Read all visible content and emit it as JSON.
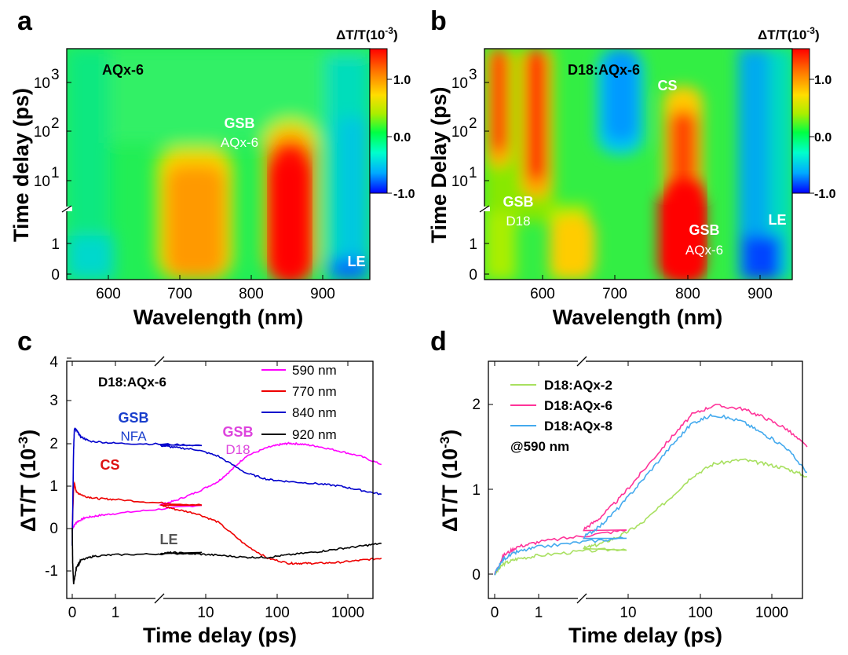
{
  "panel_letters": [
    "a",
    "b",
    "c",
    "d"
  ],
  "colors": {
    "cmap": [
      "#0000ff",
      "#00aaff",
      "#00ffbb",
      "#00ff44",
      "#aaee00",
      "#ffdd00",
      "#ff7700",
      "#ff0000"
    ],
    "c_590": "#ff00ff",
    "c_770": "#ee0000",
    "c_840": "#0000cc",
    "c_920": "#000000",
    "d_2": "#a8e060",
    "d_6": "#ff3399",
    "d_8": "#44aaee",
    "gsb_nfa": "#1a3fcc",
    "cs_red": "#dd1111",
    "gsb_d18": "#dd44dd",
    "le_gray": "#555555"
  },
  "chart_data": [
    {
      "id": "a",
      "type": "heatmap",
      "title": "AQx-6",
      "xlabel": "Wavelength (nm)",
      "ylabel": "Time delay (ps)",
      "xlim": [
        525,
        950
      ],
      "xticks": [
        "600",
        "700",
        "800",
        "900"
      ],
      "yticks_linear": [
        "0",
        "1"
      ],
      "yticks_log": [
        "10",
        "10",
        "10"
      ],
      "yticks_log_exp": [
        "1",
        "2",
        "3"
      ],
      "colorbar": {
        "title": "ΔT/T(10",
        "title_exp": "-3",
        "title_end": ")",
        "ticks": [
          "1.0",
          "0.0",
          "-1.0"
        ],
        "range": [
          -1.0,
          1.5
        ]
      },
      "annotations": [
        {
          "text": "GSB",
          "color": "#ffffff"
        },
        {
          "text": "AQx-6",
          "color": "#ffffff"
        },
        {
          "text": "LE",
          "color": "#ffffff"
        }
      ]
    },
    {
      "id": "b",
      "type": "heatmap",
      "title": "D18:AQx-6",
      "xlabel": "Wavelength (nm)",
      "ylabel": "Time Delay (ps)",
      "xlim": [
        525,
        950
      ],
      "xticks": [
        "600",
        "700",
        "800",
        "900"
      ],
      "yticks_linear": [
        "0",
        "1"
      ],
      "yticks_log": [
        "10",
        "10",
        "10"
      ],
      "yticks_log_exp": [
        "1",
        "2",
        "3"
      ],
      "colorbar": {
        "title": "ΔT/T(10",
        "title_exp": "-3",
        "title_end": ")",
        "ticks": [
          "1.0",
          "0.0",
          "-1.0"
        ],
        "range": [
          -1.0,
          1.5
        ]
      },
      "annotations": [
        {
          "text": "CS",
          "color": "#ffffff"
        },
        {
          "text": "GSB",
          "color": "#ffffff"
        },
        {
          "text": "D18",
          "color": "#ffffff"
        },
        {
          "text": "GSB",
          "color": "#ffffff"
        },
        {
          "text": "AQx-6",
          "color": "#ffffff"
        },
        {
          "text": "LE",
          "color": "#ffffff"
        }
      ]
    },
    {
      "id": "c",
      "type": "line",
      "title": "D18:AQx-6",
      "xlabel": "Time delay (ps)",
      "ylabel": "ΔT/T (10",
      "ylabel_exp": "-3",
      "ylabel_end": ")",
      "ylim": [
        -1.5,
        4
      ],
      "xticks": [
        "0",
        "1",
        "10",
        "100",
        "1000"
      ],
      "yticks": [
        "-1",
        "0",
        "1",
        "2",
        "3",
        "4"
      ],
      "series": [
        {
          "name": "590 nm",
          "t": [
            0,
            0.1,
            0.3,
            0.6,
            1,
            2,
            3,
            5,
            10,
            20,
            30,
            50,
            100,
            150,
            200,
            300,
            500,
            1000,
            2000,
            4000
          ],
          "values": [
            0.0,
            0.15,
            0.25,
            0.3,
            0.35,
            0.45,
            0.55,
            0.65,
            0.85,
            1.1,
            1.35,
            1.7,
            1.9,
            1.97,
            2.0,
            1.98,
            1.93,
            1.82,
            1.7,
            1.5
          ]
        },
        {
          "name": "770 nm",
          "t": [
            0,
            0.03,
            0.05,
            0.1,
            0.3,
            0.6,
            1,
            2,
            3,
            5,
            10,
            20,
            50,
            100,
            200,
            300,
            500,
            1000,
            2000,
            4000
          ],
          "values": [
            0.0,
            0.9,
            1.05,
            0.85,
            0.75,
            0.7,
            0.68,
            0.6,
            0.55,
            0.45,
            0.35,
            0.15,
            -0.4,
            -0.7,
            -0.82,
            -0.82,
            -0.82,
            -0.8,
            -0.75,
            -0.7
          ]
        },
        {
          "name": "840 nm",
          "t": [
            0,
            0.03,
            0.05,
            0.1,
            0.2,
            0.4,
            1,
            2,
            3,
            5,
            10,
            20,
            50,
            100,
            200,
            500,
            1000,
            2000,
            4000
          ],
          "values": [
            -0.4,
            1.8,
            2.35,
            2.3,
            2.15,
            2.05,
            2.0,
            1.98,
            1.95,
            1.9,
            1.85,
            1.7,
            1.3,
            1.15,
            1.1,
            1.05,
            1.0,
            0.9,
            0.8
          ]
        },
        {
          "name": "920 nm",
          "t": [
            0,
            0.01,
            0.03,
            0.05,
            0.1,
            0.2,
            0.5,
            1,
            2,
            3,
            5,
            10,
            20,
            50,
            100,
            200,
            500,
            1000,
            2000,
            4000
          ],
          "values": [
            0.0,
            -0.8,
            -1.3,
            -1.2,
            -0.9,
            -0.75,
            -0.65,
            -0.62,
            -0.6,
            -0.58,
            -0.57,
            -0.6,
            -0.63,
            -0.68,
            -0.68,
            -0.62,
            -0.55,
            -0.48,
            -0.42,
            -0.35
          ]
        }
      ],
      "annotations": [
        {
          "text": "GSB",
          "color": "#1a3fcc"
        },
        {
          "text": "NFA",
          "color": "#1a3fcc"
        },
        {
          "text": "CS",
          "color": "#dd1111"
        },
        {
          "text": "GSB",
          "color": "#dd44dd"
        },
        {
          "text": "D18",
          "color": "#dd44dd"
        },
        {
          "text": "LE",
          "color": "#555555"
        }
      ]
    },
    {
      "id": "d",
      "type": "line",
      "title": "@590 nm",
      "xlabel": "Time delay (ps)",
      "ylabel": "ΔT/T (10",
      "ylabel_exp": "-3",
      "ylabel_end": ")",
      "ylim": [
        -0.15,
        2.5
      ],
      "xticks": [
        "0",
        "1",
        "10",
        "100",
        "1000"
      ],
      "yticks": [
        "0",
        "1",
        "2"
      ],
      "series": [
        {
          "name": "D18:AQx-2",
          "t": [
            0,
            0.2,
            0.5,
            1,
            2,
            3,
            5,
            10,
            20,
            50,
            100,
            200,
            500,
            1000,
            2000,
            4000
          ],
          "values": [
            0.0,
            0.12,
            0.18,
            0.22,
            0.27,
            0.3,
            0.35,
            0.45,
            0.6,
            0.9,
            1.15,
            1.3,
            1.35,
            1.3,
            1.25,
            1.15
          ]
        },
        {
          "name": "D18:AQx-6",
          "t": [
            0,
            0.2,
            0.5,
            1,
            2,
            3,
            5,
            10,
            20,
            50,
            100,
            200,
            500,
            1000,
            2000,
            4000
          ],
          "values": [
            0.0,
            0.22,
            0.32,
            0.38,
            0.45,
            0.52,
            0.65,
            0.9,
            1.2,
            1.6,
            1.88,
            1.99,
            1.95,
            1.85,
            1.72,
            1.5
          ]
        },
        {
          "name": "D18:AQx-8",
          "t": [
            0,
            0.2,
            0.5,
            1,
            2,
            3,
            5,
            10,
            20,
            50,
            100,
            200,
            500,
            1000,
            2000,
            4000
          ],
          "values": [
            0.0,
            0.18,
            0.26,
            0.32,
            0.38,
            0.43,
            0.55,
            0.8,
            1.1,
            1.5,
            1.78,
            1.88,
            1.8,
            1.65,
            1.5,
            1.2
          ]
        }
      ]
    }
  ]
}
